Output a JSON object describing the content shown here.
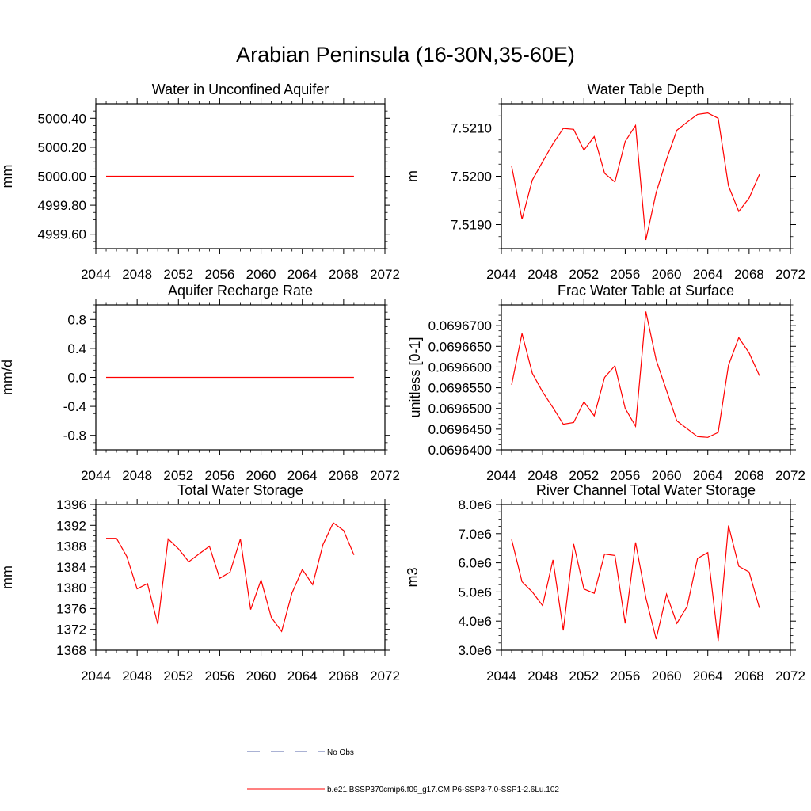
{
  "title": "Arabian Peninsula (16-30N,35-60E)",
  "legend": {
    "items": [
      {
        "label": "No Obs",
        "color": "#5566aa",
        "dash": true
      },
      {
        "label": "b.e21.BSSP370cmip6.f09_g17.CMIP6-SSP3-7.0-SSP1-2.6Lu.102",
        "color": "#ff0000",
        "dash": false
      }
    ]
  },
  "chart_data": [
    {
      "type": "line",
      "title": "Water in Unconfined Aquifer",
      "ylabel": "mm",
      "xlim": [
        2044,
        2072
      ],
      "ylim": [
        4999.5,
        5000.5
      ],
      "xticks": [
        2044,
        2048,
        2052,
        2056,
        2060,
        2064,
        2068,
        2072
      ],
      "xtick_labels": [
        "2044",
        "2048",
        "2052",
        "2056",
        "2060",
        "2064",
        "2068",
        "2072"
      ],
      "yticks": [
        4999.6,
        4999.8,
        5000.0,
        5000.2,
        5000.4
      ],
      "ytick_labels": [
        "4999.60",
        "4999.80",
        "5000.00",
        "5000.20",
        "5000.40"
      ],
      "series": [
        {
          "color": "#ff0000",
          "x": [
            2045,
            2046,
            2047,
            2048,
            2049,
            2050,
            2051,
            2052,
            2053,
            2054,
            2055,
            2056,
            2057,
            2058,
            2059,
            2060,
            2061,
            2062,
            2063,
            2064,
            2065,
            2066,
            2067,
            2068,
            2069
          ],
          "y": [
            5000.0,
            5000.0,
            5000.0,
            5000.0,
            5000.0,
            5000.0,
            5000.0,
            5000.0,
            5000.0,
            5000.0,
            5000.0,
            5000.0,
            5000.0,
            5000.0,
            5000.0,
            5000.0,
            5000.0,
            5000.0,
            5000.0,
            5000.0,
            5000.0,
            5000.0,
            5000.0,
            5000.0,
            5000.0
          ]
        }
      ]
    },
    {
      "type": "line",
      "title": "Water Table Depth",
      "ylabel": "m",
      "xlim": [
        2044,
        2072
      ],
      "ylim": [
        7.5185,
        7.5215
      ],
      "xticks": [
        2044,
        2048,
        2052,
        2056,
        2060,
        2064,
        2068,
        2072
      ],
      "xtick_labels": [
        "2044",
        "2048",
        "2052",
        "2056",
        "2060",
        "2064",
        "2068",
        "2072"
      ],
      "yticks": [
        7.519,
        7.52,
        7.521
      ],
      "ytick_labels": [
        "7.5190",
        "7.5200",
        "7.5210"
      ],
      "series": [
        {
          "color": "#ff0000",
          "x": [
            2045,
            2046,
            2047,
            2048,
            2049,
            2050,
            2051,
            2052,
            2053,
            2054,
            2055,
            2056,
            2057,
            2058,
            2059,
            2060,
            2061,
            2062,
            2063,
            2064,
            2065,
            2066,
            2067,
            2068,
            2069
          ],
          "y": [
            7.52021,
            7.51911,
            7.51992,
            7.5203,
            7.52067,
            7.52099,
            7.52097,
            7.52054,
            7.52082,
            7.52006,
            7.51988,
            7.52072,
            7.52105,
            7.51868,
            7.51966,
            7.52035,
            7.52095,
            7.52112,
            7.52128,
            7.52131,
            7.5212,
            7.5198,
            7.51927,
            7.51955,
            7.52004
          ]
        }
      ]
    },
    {
      "type": "line",
      "title": "Aquifer Recharge Rate",
      "ylabel": "mm/d",
      "xlim": [
        2044,
        2072
      ],
      "ylim": [
        -1.0,
        1.0
      ],
      "xticks": [
        2044,
        2048,
        2052,
        2056,
        2060,
        2064,
        2068,
        2072
      ],
      "xtick_labels": [
        "2044",
        "2048",
        "2052",
        "2056",
        "2060",
        "2064",
        "2068",
        "2072"
      ],
      "yticks": [
        -0.8,
        -0.4,
        0.0,
        0.4,
        0.8
      ],
      "ytick_labels": [
        "-0.8",
        "-0.4",
        "0.0",
        "0.4",
        "0.8"
      ],
      "series": [
        {
          "color": "#ff0000",
          "x": [
            2045,
            2046,
            2047,
            2048,
            2049,
            2050,
            2051,
            2052,
            2053,
            2054,
            2055,
            2056,
            2057,
            2058,
            2059,
            2060,
            2061,
            2062,
            2063,
            2064,
            2065,
            2066,
            2067,
            2068,
            2069
          ],
          "y": [
            0,
            0,
            0,
            0,
            0,
            0,
            0,
            0,
            0,
            0,
            0,
            0,
            0,
            0,
            0,
            0,
            0,
            0,
            0,
            0,
            0,
            0,
            0,
            0,
            0
          ]
        }
      ]
    },
    {
      "type": "line",
      "title": "Frac Water Table at Surface",
      "ylabel": "unitless [0-1]",
      "xlim": [
        2044,
        2072
      ],
      "ylim": [
        0.06964,
        0.069675
      ],
      "xticks": [
        2044,
        2048,
        2052,
        2056,
        2060,
        2064,
        2068,
        2072
      ],
      "xtick_labels": [
        "2044",
        "2048",
        "2052",
        "2056",
        "2060",
        "2064",
        "2068",
        "2072"
      ],
      "yticks": [
        0.06964,
        0.069645,
        0.06965,
        0.069655,
        0.06966,
        0.069665,
        0.06967
      ],
      "ytick_labels": [
        "0.0696400",
        "0.0696450",
        "0.0696500",
        "0.0696550",
        "0.0696600",
        "0.0696650",
        "0.0696700"
      ],
      "series": [
        {
          "color": "#ff0000",
          "x": [
            2045,
            2046,
            2047,
            2048,
            2049,
            2050,
            2051,
            2052,
            2053,
            2054,
            2055,
            2056,
            2057,
            2058,
            2059,
            2060,
            2061,
            2062,
            2063,
            2064,
            2065,
            2066,
            2067,
            2068,
            2069
          ],
          "y": [
            0.0696557,
            0.0696681,
            0.0696585,
            0.069654,
            0.0696502,
            0.0696462,
            0.0696466,
            0.0696516,
            0.0696482,
            0.0696575,
            0.0696603,
            0.06965,
            0.0696457,
            0.0696734,
            0.0696617,
            0.0696543,
            0.069647,
            0.0696451,
            0.0696432,
            0.069643,
            0.0696442,
            0.0696604,
            0.0696671,
            0.0696634,
            0.0696579
          ]
        }
      ]
    },
    {
      "type": "line",
      "title": "Total Water Storage",
      "ylabel": "mm",
      "xlim": [
        2044,
        2072
      ],
      "ylim": [
        1368,
        1396
      ],
      "xticks": [
        2044,
        2048,
        2052,
        2056,
        2060,
        2064,
        2068,
        2072
      ],
      "xtick_labels": [
        "2044",
        "2048",
        "2052",
        "2056",
        "2060",
        "2064",
        "2068",
        "2072"
      ],
      "yticks": [
        1368,
        1372,
        1376,
        1380,
        1384,
        1388,
        1392,
        1396
      ],
      "ytick_labels": [
        "1368",
        "1372",
        "1376",
        "1380",
        "1384",
        "1388",
        "1392",
        "1396"
      ],
      "series": [
        {
          "color": "#ff0000",
          "x": [
            2045,
            2046,
            2047,
            2048,
            2049,
            2050,
            2051,
            2052,
            2053,
            2054,
            2055,
            2056,
            2057,
            2058,
            2059,
            2060,
            2061,
            2062,
            2063,
            2064,
            2065,
            2066,
            2067,
            2068,
            2069
          ],
          "y": [
            1389.5,
            1389.5,
            1386.0,
            1379.8,
            1380.8,
            1373.0,
            1389.4,
            1387.5,
            1385.0,
            1386.5,
            1388.0,
            1381.8,
            1383.0,
            1389.4,
            1375.8,
            1381.5,
            1374.3,
            1371.6,
            1379.0,
            1383.5,
            1380.6,
            1388.3,
            1392.5,
            1391.0,
            1386.3
          ]
        }
      ]
    },
    {
      "type": "line",
      "title": "River Channel Total Water Storage",
      "ylabel": "m3",
      "xlim": [
        2044,
        2072
      ],
      "ylim": [
        3000000,
        8000000
      ],
      "xticks": [
        2044,
        2048,
        2052,
        2056,
        2060,
        2064,
        2068,
        2072
      ],
      "xtick_labels": [
        "2044",
        "2048",
        "2052",
        "2056",
        "2060",
        "2064",
        "2068",
        "2072"
      ],
      "yticks": [
        3000000,
        4000000,
        5000000,
        6000000,
        7000000,
        8000000
      ],
      "ytick_labels": [
        "3.0e6",
        "4.0e6",
        "5.0e6",
        "6.0e6",
        "7.0e6",
        "8.0e6"
      ],
      "series": [
        {
          "color": "#ff0000",
          "x": [
            2045,
            2046,
            2047,
            2048,
            2049,
            2050,
            2051,
            2052,
            2053,
            2054,
            2055,
            2056,
            2057,
            2058,
            2059,
            2060,
            2061,
            2062,
            2063,
            2064,
            2065,
            2066,
            2067,
            2068,
            2069
          ],
          "y": [
            6800000,
            5350000,
            5000000,
            4530000,
            6100000,
            3680000,
            6650000,
            5100000,
            4950000,
            6300000,
            6250000,
            3920000,
            6700000,
            4800000,
            3380000,
            4920000,
            3920000,
            4500000,
            6150000,
            6350000,
            3320000,
            7280000,
            5880000,
            5680000,
            4450000
          ]
        }
      ]
    }
  ]
}
